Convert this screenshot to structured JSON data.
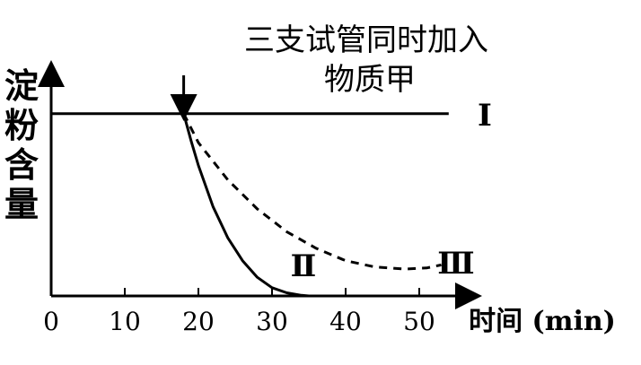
{
  "chart_data": {
    "type": "line",
    "ylabel": "淀粉含量",
    "xlabel": "时间 (min)",
    "x_ticks": [
      0,
      10,
      20,
      30,
      40,
      50
    ],
    "xlim": [
      0,
      55
    ],
    "ylim": [
      0,
      1
    ],
    "annotation": "三支试管同时加入物质甲",
    "annotation_lines": [
      "三支试管同时加入",
      "物质甲"
    ],
    "annotation_x": 18,
    "series": [
      {
        "name": "Ⅰ",
        "style": "solid",
        "x": [
          0,
          54
        ],
        "y": [
          0.88,
          0.88
        ]
      },
      {
        "name": "Ⅱ",
        "style": "solid",
        "x": [
          18,
          19,
          20,
          22,
          24,
          26,
          28,
          30,
          32,
          34,
          35
        ],
        "y": [
          0.88,
          0.75,
          0.63,
          0.43,
          0.28,
          0.17,
          0.09,
          0.04,
          0.015,
          0.003,
          0
        ]
      },
      {
        "name": "Ⅲ",
        "style": "dashed",
        "x": [
          18,
          20,
          24,
          28,
          32,
          36,
          40,
          44,
          48,
          51,
          53
        ],
        "y": [
          0.88,
          0.74,
          0.56,
          0.42,
          0.31,
          0.23,
          0.17,
          0.14,
          0.13,
          0.135,
          0.15
        ]
      }
    ],
    "grid": false,
    "legend": "none"
  }
}
